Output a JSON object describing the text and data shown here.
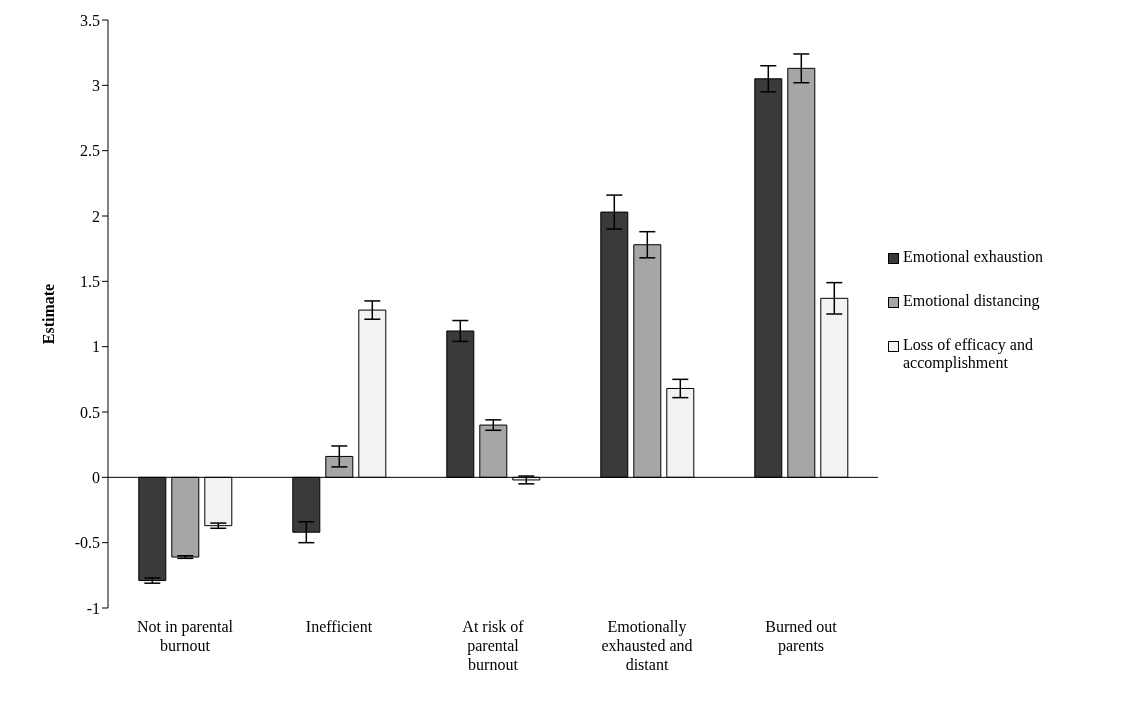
{
  "chart_data": {
    "type": "bar",
    "ylabel": "Estimate",
    "categories": [
      "Not in parental burnout",
      "Inefficient",
      "At risk of parental burnout",
      "Emotionally exhausted and distant",
      "Burned out parents"
    ],
    "series": [
      {
        "name": "Emotional exhaustion",
        "color": "#3a3a3a",
        "values": [
          -0.79,
          -0.42,
          1.12,
          2.03,
          3.05
        ],
        "errors": [
          0.02,
          0.08,
          0.08,
          0.13,
          0.1
        ]
      },
      {
        "name": "Emotional distancing",
        "color": "#a6a6a6",
        "values": [
          -0.61,
          0.16,
          0.4,
          1.78,
          3.13
        ],
        "errors": [
          0.01,
          0.08,
          0.04,
          0.1,
          0.11
        ]
      },
      {
        "name": "Loss of efficacy and accomplishment",
        "color": "#f2f2f2",
        "values": [
          -0.37,
          1.28,
          -0.02,
          0.68,
          1.37
        ],
        "errors": [
          0.02,
          0.07,
          0.03,
          0.07,
          0.12
        ]
      }
    ],
    "ylim": [
      -1,
      3.5
    ],
    "yticks": [
      -1,
      -0.5,
      0,
      0.5,
      1,
      1.5,
      2,
      2.5,
      3,
      3.5
    ],
    "legend": "right"
  }
}
